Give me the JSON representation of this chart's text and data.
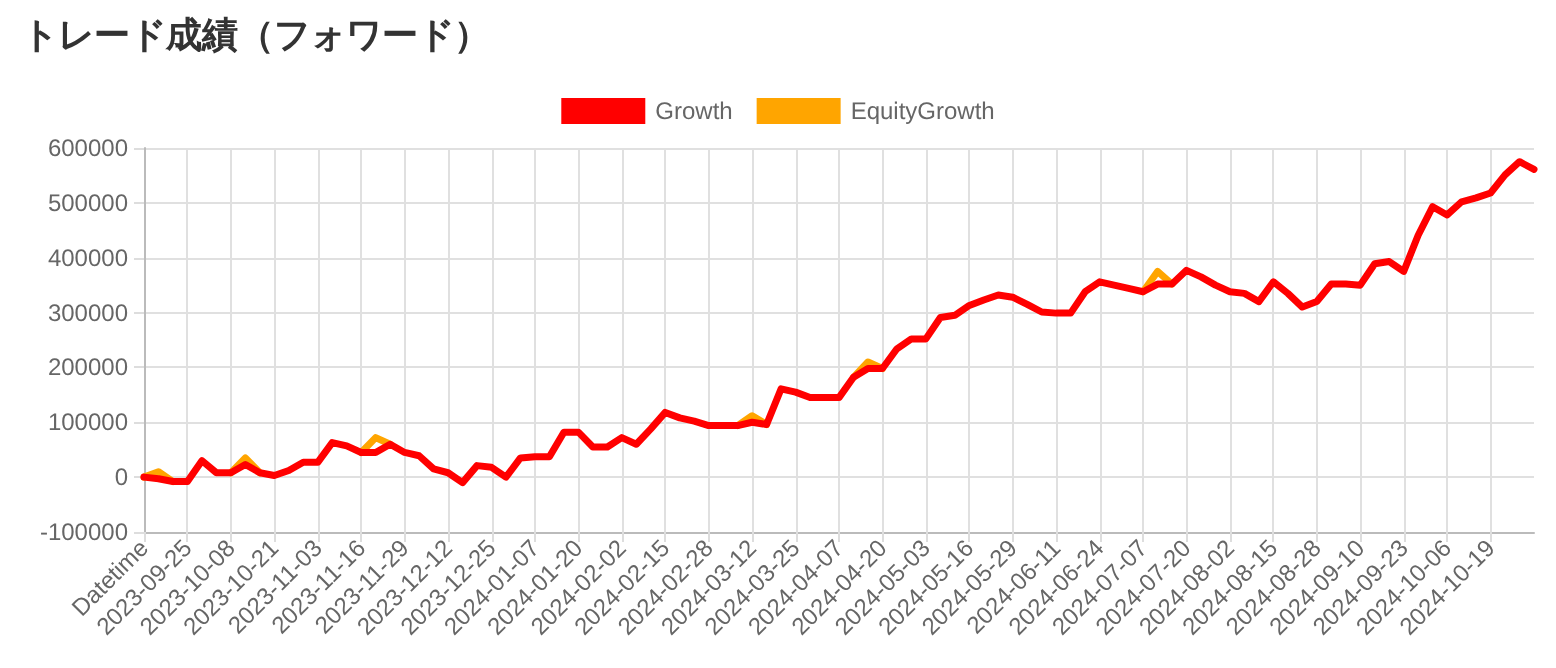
{
  "chart_data": {
    "type": "line",
    "title": "トレード成績（フォワード）",
    "categories": [
      "Datetime",
      null,
      null,
      "2023-09-25",
      null,
      null,
      "2023-10-08",
      null,
      null,
      "2023-10-21",
      null,
      null,
      "2023-11-03",
      null,
      null,
      "2023-11-16",
      null,
      null,
      "2023-11-29",
      null,
      null,
      "2023-12-12",
      null,
      null,
      "2023-12-25",
      null,
      null,
      "2024-01-07",
      null,
      null,
      "2024-01-20",
      null,
      null,
      "2024-02-02",
      null,
      null,
      "2024-02-15",
      null,
      null,
      "2024-02-28",
      null,
      null,
      "2024-03-12",
      null,
      null,
      "2024-03-25",
      null,
      null,
      "2024-04-07",
      null,
      null,
      "2024-04-20",
      null,
      null,
      "2024-05-03",
      null,
      null,
      "2024-05-16",
      null,
      null,
      "2024-05-29",
      null,
      null,
      "2024-06-11",
      null,
      null,
      "2024-06-24",
      null,
      null,
      "2024-07-07",
      null,
      null,
      "2024-07-20",
      null,
      null,
      "2024-08-02",
      null,
      null,
      "2024-08-15",
      null,
      null,
      "2024-08-28",
      null,
      null,
      "2024-09-10",
      null,
      null,
      "2024-09-23",
      null,
      null,
      "2024-10-06",
      null,
      null,
      "2024-10-19",
      null,
      null,
      null
    ],
    "series": [
      {
        "name": "Growth",
        "color": "#ff0000",
        "values": [
          0,
          -3000,
          -8000,
          -8000,
          30000,
          8000,
          8000,
          23000,
          8000,
          3000,
          12000,
          27000,
          27000,
          63000,
          57000,
          45000,
          45000,
          60000,
          45000,
          39000,
          15000,
          8000,
          -10000,
          21000,
          18000,
          0,
          35000,
          37000,
          37000,
          82000,
          82000,
          55000,
          55000,
          72000,
          60000,
          88000,
          118000,
          108000,
          102000,
          94000,
          94000,
          94000,
          100000,
          96000,
          161000,
          155000,
          145000,
          145000,
          145000,
          182000,
          198000,
          198000,
          234000,
          252000,
          252000,
          291000,
          295000,
          313000,
          323000,
          332000,
          328000,
          315000,
          301000,
          299000,
          299000,
          338000,
          356000,
          350000,
          344000,
          338000,
          352000,
          352000,
          377000,
          365000,
          350000,
          338000,
          335000,
          320000,
          356000,
          335000,
          310000,
          320000,
          352000,
          352000,
          350000,
          389000,
          393000,
          375000,
          441000,
          493000,
          478000,
          502000,
          509000,
          518000,
          551000,
          575000,
          561000
        ]
      },
      {
        "name": "EquityGrowth",
        "color": "#ffa500",
        "values": [
          0,
          10000,
          -8000,
          null,
          null,
          null,
          8000,
          35000,
          8000,
          null,
          null,
          null,
          null,
          null,
          null,
          45000,
          72000,
          60000,
          null,
          null,
          null,
          null,
          null,
          null,
          null,
          null,
          null,
          null,
          null,
          null,
          null,
          null,
          null,
          null,
          null,
          null,
          null,
          null,
          null,
          null,
          null,
          94000,
          112000,
          96000,
          null,
          null,
          null,
          null,
          null,
          182000,
          210000,
          198000,
          null,
          null,
          null,
          null,
          null,
          null,
          null,
          null,
          null,
          null,
          null,
          null,
          null,
          null,
          null,
          null,
          null,
          338000,
          375000,
          352000,
          null,
          null,
          null,
          null,
          null,
          null,
          null,
          null,
          null,
          null,
          null,
          null,
          null,
          null,
          null,
          null,
          null,
          null,
          null,
          null,
          null,
          null,
          null,
          null,
          null
        ]
      }
    ],
    "ylim": [
      -100000,
      600000
    ],
    "yticks": [
      -100000,
      0,
      100000,
      200000,
      300000,
      400000,
      500000,
      600000
    ],
    "grid": true,
    "legend": "top",
    "marker": "none",
    "line_style": "solid"
  }
}
